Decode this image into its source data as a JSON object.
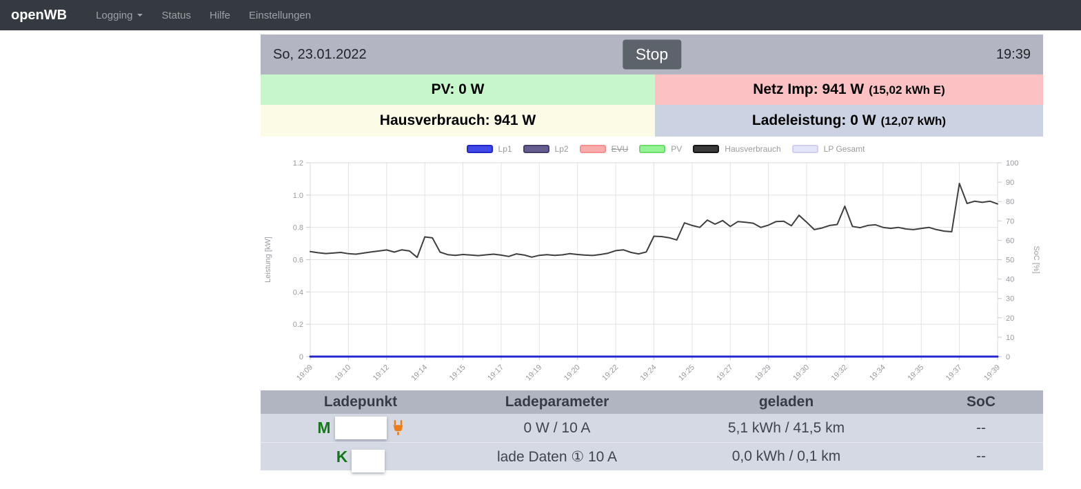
{
  "navbar": {
    "brand": "openWB",
    "items": [
      {
        "label": "Logging",
        "has_dropdown": true
      },
      {
        "label": "Status",
        "has_dropdown": false
      },
      {
        "label": "Hilfe",
        "has_dropdown": false
      },
      {
        "label": "Einstellungen",
        "has_dropdown": false
      }
    ]
  },
  "header": {
    "date": "So, 23.01.2022",
    "stop_label": "Stop",
    "time": "19:39"
  },
  "tiles": {
    "pv": {
      "label": "PV: 0 W",
      "bg": "#c6f6c9"
    },
    "grid": {
      "main": "Netz Imp: 941 W",
      "detail": "(15,02 kWh E)",
      "bg": "#fbc1c3"
    },
    "house": {
      "label": "Hausverbrauch: 941 W",
      "bg": "#fcfce6"
    },
    "charge": {
      "main": "Ladeleistung: 0 W",
      "detail": "(12,07 kWh)",
      "bg": "#cbd2e1"
    }
  },
  "chart_data": {
    "type": "line",
    "ylabel_left": "Leistung [kW]",
    "ylabel_right": "SoC [%]",
    "ylim_left": [
      0,
      1.2
    ],
    "yticks_left": [
      0,
      0.2,
      0.4,
      0.6,
      0.8,
      1.0,
      1.2
    ],
    "ylim_right": [
      0,
      100
    ],
    "yticks_right": [
      0,
      10,
      20,
      30,
      40,
      50,
      60,
      70,
      80,
      90,
      100
    ],
    "grid": true,
    "legend_position": "top-center",
    "x_labels": [
      "19:09",
      "19:10",
      "19:12",
      "19:14",
      "19:15",
      "19:17",
      "19:19",
      "19:20",
      "19:22",
      "19:24",
      "19:25",
      "19:27",
      "19:29",
      "19:30",
      "19:32",
      "19:34",
      "19:35",
      "19:37",
      "19:39"
    ],
    "label_every": 5,
    "points_per_series": 91,
    "legend": [
      {
        "label": "Lp1",
        "fill": "#4149e8",
        "border": "#2228c8",
        "struck": false
      },
      {
        "label": "Lp2",
        "fill": "#655d90",
        "border": "#453e6b",
        "struck": false
      },
      {
        "label": "EVU",
        "fill": "#fbadad",
        "border": "#f59090",
        "struck": true
      },
      {
        "label": "PV",
        "fill": "#97f397",
        "border": "#6ade6a",
        "struck": false
      },
      {
        "label": "Hausverbrauch",
        "fill": "#3a3a3a",
        "border": "#161616",
        "struck": false
      },
      {
        "label": "LP Gesamt",
        "fill": "#e4e4f9",
        "border": "#cfcff0",
        "struck": false
      }
    ],
    "series": [
      {
        "name": "Hausverbrauch",
        "color": "#3e3e3e",
        "width": 2,
        "unit": "kW",
        "values": [
          0.65,
          0.643,
          0.638,
          0.641,
          0.645,
          0.637,
          0.634,
          0.641,
          0.648,
          0.654,
          0.66,
          0.647,
          0.661,
          0.654,
          0.614,
          0.741,
          0.735,
          0.647,
          0.631,
          0.627,
          0.632,
          0.629,
          0.625,
          0.63,
          0.634,
          0.628,
          0.62,
          0.636,
          0.629,
          0.616,
          0.627,
          0.631,
          0.627,
          0.63,
          0.637,
          0.632,
          0.628,
          0.626,
          0.632,
          0.64,
          0.656,
          0.661,
          0.645,
          0.636,
          0.648,
          0.745,
          0.743,
          0.736,
          0.722,
          0.828,
          0.812,
          0.8,
          0.845,
          0.82,
          0.842,
          0.806,
          0.836,
          0.832,
          0.826,
          0.8,
          0.814,
          0.836,
          0.838,
          0.81,
          0.875,
          0.832,
          0.786,
          0.796,
          0.812,
          0.818,
          0.931,
          0.806,
          0.798,
          0.812,
          0.816,
          0.8,
          0.794,
          0.8,
          0.79,
          0.786,
          0.793,
          0.8,
          0.786,
          0.777,
          0.773,
          1.072,
          0.948,
          0.962,
          0.955,
          0.962,
          0.945
        ]
      },
      {
        "name": "Lp1",
        "color": "#2527cd",
        "width": 3,
        "unit": "kW",
        "constant": 0
      }
    ]
  },
  "table": {
    "headers": [
      "Ladepunkt",
      "Ladeparameter",
      "geladen",
      "SoC"
    ],
    "rows": [
      {
        "name_letter": "M",
        "plugged": true,
        "redact_width": 75,
        "param": "0 W / 10 A",
        "geladen": "5,1 kWh / 41,5 km",
        "soc": "--"
      },
      {
        "name_letter": "K",
        "plugged": false,
        "redact_width": 48,
        "param": "lade Daten ① 10 A",
        "geladen": "0,0 kWh / 0,1 km",
        "soc": "--"
      }
    ]
  },
  "colors": {
    "accent_plug": "#ee7d17",
    "navbar_bg": "#343a40",
    "bar_bg": "#b3b6c2",
    "row_bg": "#d5d9e4"
  }
}
